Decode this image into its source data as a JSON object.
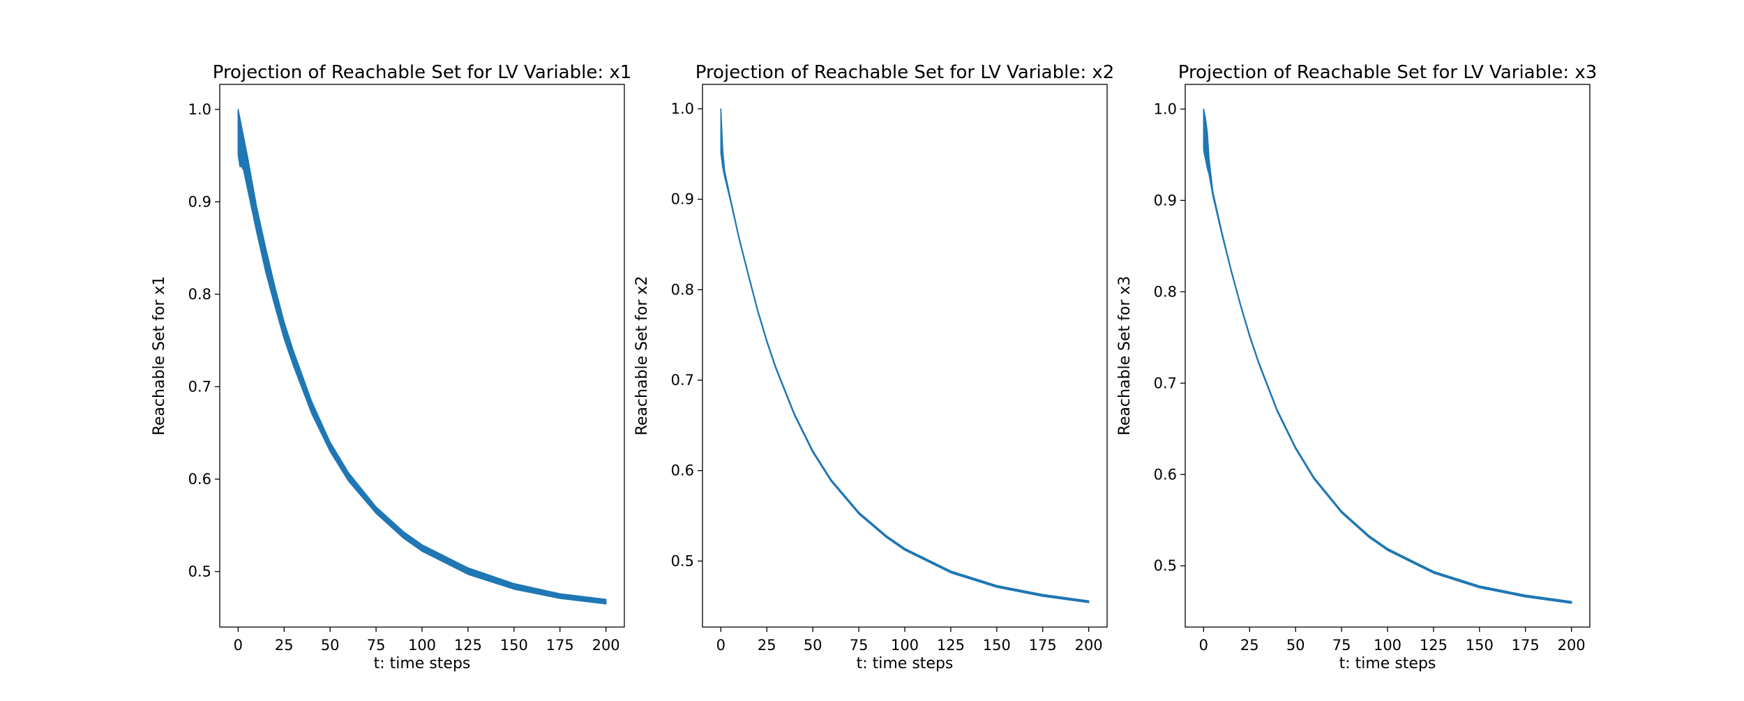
{
  "chart_data": [
    {
      "type": "area",
      "title": "Projection of Reachable Set for LV Variable: x1",
      "xlabel": "t: time steps",
      "ylabel": "Reachable Set for x1",
      "xlim": [
        -10,
        210
      ],
      "ylim": [
        0.44,
        1.027
      ],
      "xticks": [
        0,
        25,
        50,
        75,
        100,
        125,
        150,
        175,
        200
      ],
      "yticks": [
        0.5,
        0.6,
        0.7,
        0.8,
        0.9,
        1.0
      ],
      "grid": false,
      "color": "#1f77b4",
      "series": [
        {
          "x": [
            0,
            1,
            2,
            3,
            5,
            10,
            15,
            20,
            25,
            30,
            40,
            50,
            60,
            75,
            90,
            100,
            125,
            150,
            175,
            200
          ],
          "lower": [
            0.951,
            0.938,
            0.938,
            0.934,
            0.915,
            0.868,
            0.824,
            0.787,
            0.752,
            0.723,
            0.671,
            0.63,
            0.598,
            0.563,
            0.536,
            0.522,
            0.497,
            0.481,
            0.471,
            0.465
          ],
          "upper": [
            1.0,
            0.99,
            0.98,
            0.97,
            0.95,
            0.895,
            0.85,
            0.808,
            0.77,
            0.739,
            0.684,
            0.64,
            0.607,
            0.57,
            0.543,
            0.529,
            0.504,
            0.487,
            0.476,
            0.47
          ]
        }
      ]
    },
    {
      "type": "area",
      "title": "Projection of Reachable Set for LV Variable: x2",
      "xlabel": "t: time steps",
      "ylabel": "Reachable Set for x2",
      "xlim": [
        -10,
        210
      ],
      "ylim": [
        0.427,
        1.027
      ],
      "xticks": [
        0,
        25,
        50,
        75,
        100,
        125,
        150,
        175,
        200
      ],
      "yticks": [
        0.5,
        0.6,
        0.7,
        0.8,
        0.9,
        1.0
      ],
      "grid": false,
      "color": "#1f77b4",
      "series": [
        {
          "x": [
            0,
            1,
            2,
            5,
            10,
            15,
            20,
            25,
            30,
            40,
            50,
            60,
            75,
            90,
            100,
            125,
            150,
            175,
            200
          ],
          "lower": [
            0.951,
            0.935,
            0.925,
            0.9,
            0.855,
            0.815,
            0.776,
            0.742,
            0.712,
            0.661,
            0.62,
            0.588,
            0.552,
            0.526,
            0.512,
            0.487,
            0.471,
            0.461,
            0.454
          ],
          "upper": [
            1.0,
            0.955,
            0.932,
            0.903,
            0.857,
            0.817,
            0.778,
            0.744,
            0.714,
            0.663,
            0.622,
            0.59,
            0.554,
            0.528,
            0.514,
            0.489,
            0.473,
            0.463,
            0.456
          ]
        }
      ]
    },
    {
      "type": "area",
      "title": "Projection of Reachable Set for LV Variable: x3",
      "xlabel": "t: time steps",
      "ylabel": "Reachable Set for x3",
      "xlim": [
        -10,
        210
      ],
      "ylim": [
        0.433,
        1.027
      ],
      "xticks": [
        0,
        25,
        50,
        75,
        100,
        125,
        150,
        175,
        200
      ],
      "yticks": [
        0.5,
        0.6,
        0.7,
        0.8,
        0.9,
        1.0
      ],
      "grid": false,
      "color": "#1f77b4",
      "series": [
        {
          "x": [
            0,
            1,
            2,
            3,
            5,
            10,
            15,
            20,
            25,
            30,
            40,
            50,
            60,
            75,
            90,
            100,
            125,
            150,
            175,
            200
          ],
          "lower": [
            0.955,
            0.945,
            0.935,
            0.928,
            0.905,
            0.862,
            0.822,
            0.785,
            0.751,
            0.721,
            0.669,
            0.628,
            0.595,
            0.558,
            0.531,
            0.517,
            0.492,
            0.476,
            0.466,
            0.459
          ],
          "upper": [
            1.0,
            0.99,
            0.975,
            0.945,
            0.91,
            0.865,
            0.824,
            0.787,
            0.753,
            0.723,
            0.671,
            0.63,
            0.597,
            0.56,
            0.533,
            0.519,
            0.494,
            0.478,
            0.468,
            0.461
          ]
        }
      ]
    }
  ]
}
